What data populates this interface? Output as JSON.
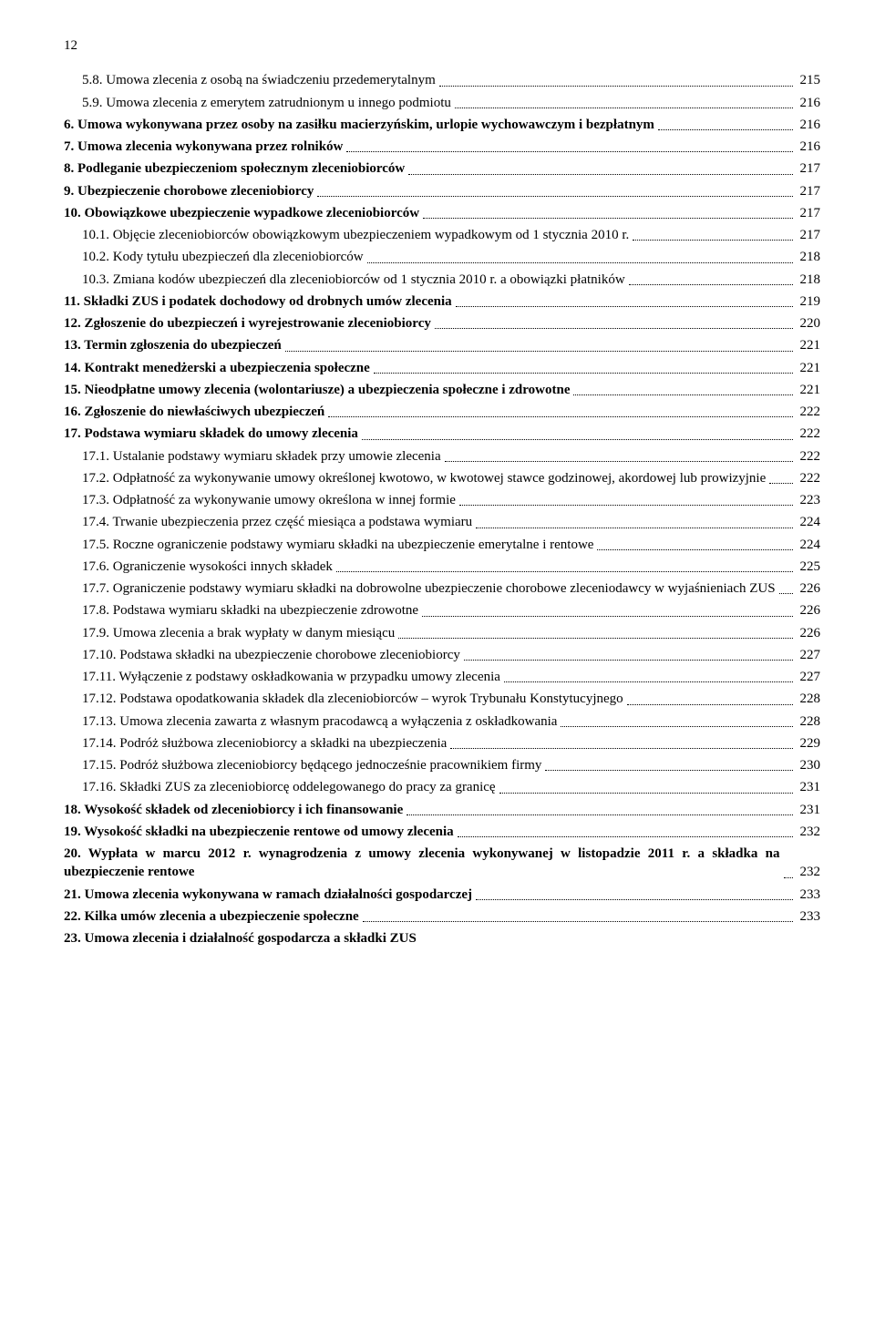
{
  "page_number": "12",
  "entries": [
    {
      "indent": 1,
      "bold": false,
      "text": "5.8. Umowa zlecenia z osobą na świadczeniu przedemerytalnym",
      "page": "215"
    },
    {
      "indent": 1,
      "bold": false,
      "text": "5.9. Umowa zlecenia z emerytem zatrudnionym u innego podmiotu",
      "page": "216"
    },
    {
      "indent": 0,
      "bold": true,
      "text": "6. Umowa wykonywana przez osoby na zasiłku macierzyńskim, urlopie wychowawczym i bezpłatnym",
      "page": "216"
    },
    {
      "indent": 0,
      "bold": true,
      "text": "7. Umowa zlecenia wykonywana przez rolników",
      "page": "216"
    },
    {
      "indent": 0,
      "bold": true,
      "text": "8. Podleganie ubezpieczeniom społecznym zleceniobiorców",
      "page": "217"
    },
    {
      "indent": 0,
      "bold": true,
      "text": "9. Ubezpieczenie chorobowe zleceniobiorcy",
      "page": "217"
    },
    {
      "indent": 0,
      "bold": true,
      "text": "10. Obowiązkowe ubezpieczenie wypadkowe zleceniobiorców",
      "page": "217"
    },
    {
      "indent": 1,
      "bold": false,
      "text": "10.1. Objęcie zleceniobiorców obowiązkowym ubezpieczeniem wypadkowym od 1 stycznia 2010 r.",
      "page": "217"
    },
    {
      "indent": 1,
      "bold": false,
      "text": "10.2. Kody tytułu ubezpieczeń dla zleceniobiorców",
      "page": "218"
    },
    {
      "indent": 1,
      "bold": false,
      "text": "10.3. Zmiana kodów ubezpieczeń dla zleceniobiorców od 1 stycznia 2010 r. a obowiązki płatników",
      "page": "218"
    },
    {
      "indent": 0,
      "bold": true,
      "text": "11. Składki ZUS i podatek dochodowy od drobnych umów zlecenia",
      "page": "219"
    },
    {
      "indent": 0,
      "bold": true,
      "text": "12. Zgłoszenie do ubezpieczeń i wyrejestrowanie zleceniobiorcy",
      "page": "220"
    },
    {
      "indent": 0,
      "bold": true,
      "text": "13. Termin zgłoszenia do ubezpieczeń",
      "page": "221"
    },
    {
      "indent": 0,
      "bold": true,
      "text": "14. Kontrakt menedżerski a ubezpieczenia społeczne",
      "page": "221"
    },
    {
      "indent": 0,
      "bold": true,
      "text": "15. Nieodpłatne umowy zlecenia (wolontariusze) a ubezpieczenia społeczne i zdrowotne",
      "page": "221"
    },
    {
      "indent": 0,
      "bold": true,
      "text": "16. Zgłoszenie do niewłaściwych ubezpieczeń",
      "page": "222"
    },
    {
      "indent": 0,
      "bold": true,
      "text": "17. Podstawa wymiaru składek do umowy zlecenia",
      "page": "222"
    },
    {
      "indent": 1,
      "bold": false,
      "text": "17.1. Ustalanie podstawy wymiaru składek przy umowie zlecenia",
      "page": "222"
    },
    {
      "indent": 1,
      "bold": false,
      "text": "17.2. Odpłatność za wykonywanie umowy określonej kwotowo, w kwotowej stawce godzinowej, akordowej lub prowizyjnie",
      "page": "222"
    },
    {
      "indent": 1,
      "bold": false,
      "text": "17.3. Odpłatność za wykonywanie umowy określona w innej formie",
      "page": "223"
    },
    {
      "indent": 1,
      "bold": false,
      "text": "17.4. Trwanie ubezpieczenia przez część miesiąca a podstawa wymiaru",
      "page": "224"
    },
    {
      "indent": 1,
      "bold": false,
      "text": "17.5. Roczne ograniczenie podstawy wymiaru składki na ubezpieczenie emerytalne i rentowe",
      "page": "224"
    },
    {
      "indent": 1,
      "bold": false,
      "text": "17.6. Ograniczenie wysokości innych składek",
      "page": "225"
    },
    {
      "indent": 1,
      "bold": false,
      "text": "17.7. Ograniczenie podstawy wymiaru składki na dobrowolne ubezpieczenie chorobowe zleceniodawcy w wyjaśnieniach ZUS",
      "page": "226"
    },
    {
      "indent": 1,
      "bold": false,
      "text": "17.8. Podstawa wymiaru składki na ubezpieczenie zdrowotne",
      "page": "226"
    },
    {
      "indent": 1,
      "bold": false,
      "text": "17.9. Umowa zlecenia a brak wypłaty w danym miesiącu",
      "page": "226"
    },
    {
      "indent": 1,
      "bold": false,
      "text": "17.10. Podstawa składki na ubezpieczenie chorobowe zleceniobiorcy",
      "page": "227"
    },
    {
      "indent": 1,
      "bold": false,
      "text": "17.11. Wyłączenie z podstawy oskładkowania w przypadku umowy zlecenia",
      "page": "227"
    },
    {
      "indent": 1,
      "bold": false,
      "text": "17.12. Podstawa opodatkowania składek dla zleceniobiorców – wyrok Trybunału Konstytucyjnego",
      "page": "228"
    },
    {
      "indent": 1,
      "bold": false,
      "text": "17.13. Umowa zlecenia zawarta z własnym pracodawcą a wyłączenia z oskładkowania",
      "page": "228"
    },
    {
      "indent": 1,
      "bold": false,
      "text": "17.14. Podróż służbowa zleceniobiorcy a składki na ubezpieczenia",
      "page": "229"
    },
    {
      "indent": 1,
      "bold": false,
      "text": "17.15. Podróż służbowa zleceniobiorcy będącego jednocześnie pracownikiem firmy",
      "page": "230"
    },
    {
      "indent": 1,
      "bold": false,
      "text": "17.16. Składki ZUS za zleceniobiorcę oddelegowanego do pracy za granicę",
      "page": "231"
    },
    {
      "indent": 0,
      "bold": true,
      "text": "18. Wysokość składek od zleceniobiorcy i ich finansowanie",
      "page": "231"
    },
    {
      "indent": 0,
      "bold": true,
      "text": "19. Wysokość składki na ubezpieczenie rentowe od umowy zlecenia",
      "page": "232"
    },
    {
      "indent": 0,
      "bold": true,
      "text": "20. Wypłata w marcu 2012 r. wynagrodzenia z umowy zlecenia wykonywanej w listopadzie 2011 r. a składka na ubezpieczenie rentowe",
      "page": "232"
    },
    {
      "indent": 0,
      "bold": true,
      "text": "21. Umowa zlecenia wykonywana w ramach działalności gospodarczej",
      "page": "233"
    },
    {
      "indent": 0,
      "bold": true,
      "text": "22. Kilka umów zlecenia a ubezpieczenie społeczne",
      "page": "233"
    },
    {
      "indent": 0,
      "bold": true,
      "text": "23. Umowa zlecenia i działalność gospodarcza a składki ZUS",
      "page": ""
    }
  ]
}
